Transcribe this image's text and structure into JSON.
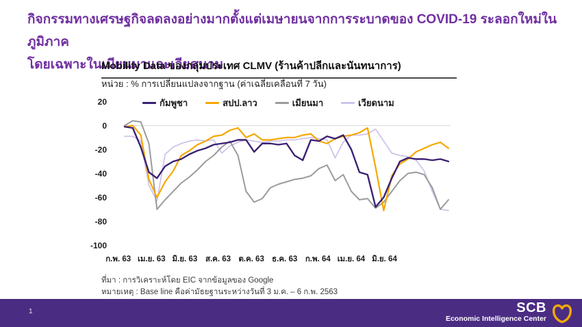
{
  "slide": {
    "headline_line1": "กิจกรรมทางเศรษฐกิจลดลงอย่างมากตั้งแต่เมษายนจากการระบาดของ COVID-19 ระลอกใหม่ในภูมิภาค",
    "headline_line2": "โดยเฉพาะในเมียนมาและเวียดนาม",
    "accent_color": "#7030A0"
  },
  "chart_header": {
    "title": "Mobility Data ของกลุ่มประเทศ CLMV (ร้านค้าปลีกและนันทนาการ)",
    "unit_label": "หน่วย : % การเปลี่ยนแปลงจากฐาน (ค่าเฉลี่ยเคลื่อนที่ 7 วัน)"
  },
  "notes": {
    "source": "ที่มา : การวิเคราะห์โดย EIC จากข้อมูลของ Google",
    "remark": "หมายเหตุ : Base line คือค่ามัธยฐานระหว่างวันที่ 3 ม.ค. – 6 ก.พ. 2563"
  },
  "footer": {
    "page_number": "1",
    "brand": "SCB",
    "brand_sub": "Economic Intelligence Center",
    "logo": "scb-leaf-icon",
    "logo_color": "#F2A900",
    "bar_color": "#4B2C83"
  },
  "chart_data": {
    "type": "line",
    "title": "Mobility Data ของกลุ่มประเทศ CLMV (ร้านค้าปลีกและนันทนาการ)",
    "ylabel": "% การเปลี่ยนแปลงจากฐาน (ค่าเฉลี่ยเคลื่อนที่ 7 วัน)",
    "xlabel": "",
    "ylim": [
      -100,
      20
    ],
    "y_ticks": [
      20,
      0,
      -20,
      -40,
      -60,
      -80,
      -100
    ],
    "x_ticks": [
      "ก.พ. 63",
      "เม.ย. 63",
      "มิ.ย. 63",
      "ส.ค. 63",
      "ต.ค. 63",
      "ธ.ค. 63",
      "ก.พ. 64",
      "เม.ย. 64",
      "มิ.ย. 64"
    ],
    "grid": "zero-baseline-only",
    "legend_position": "top",
    "series": [
      {
        "name": "เวียดนาม",
        "color": "#CFC3EA",
        "values": [
          -9,
          -9,
          -13,
          -50,
          -63,
          -24,
          -18,
          -15,
          -13,
          -12,
          -13,
          -12,
          -23,
          -17,
          -14,
          -12,
          -13,
          -14,
          -13,
          -13,
          -12,
          -12,
          -11,
          -10,
          -11,
          -12,
          -27,
          -14,
          -8,
          -8,
          -7,
          -3,
          -13,
          -23,
          -25,
          -26,
          -29,
          -38,
          -55,
          -70,
          -71
        ]
      },
      {
        "name": "เมียนมา",
        "color": "#9B9B9B",
        "values": [
          0,
          4,
          3,
          -15,
          -70,
          -62,
          -55,
          -48,
          -43,
          -37,
          -30,
          -25,
          -18,
          -13,
          -25,
          -55,
          -64,
          -61,
          -52,
          -49,
          -47,
          -45,
          -44,
          -42,
          -36,
          -33,
          -46,
          -41,
          -55,
          -62,
          -61,
          -69,
          -64,
          -55,
          -46,
          -40,
          -39,
          -41,
          -52,
          -70,
          -62
        ]
      },
      {
        "name": "สปป.ลาว",
        "color": "#F5A800",
        "values": [
          -1,
          0,
          -8,
          -45,
          -60,
          -47,
          -38,
          -25,
          -21,
          -16,
          -13,
          -9,
          -8,
          -4,
          -2,
          -10,
          -7,
          -12,
          -12,
          -11,
          -10,
          -10,
          -8,
          -7,
          -13,
          -15,
          -11,
          -9,
          -8,
          -6,
          -2,
          -35,
          -71,
          -42,
          -32,
          -28,
          -22,
          -19,
          -16,
          -14,
          -19
        ]
      },
      {
        "name": "กัมพูชา",
        "color": "#3B2173",
        "values": [
          -1,
          -2,
          -18,
          -39,
          -44,
          -34,
          -30,
          -28,
          -24,
          -21,
          -19,
          -16,
          -15,
          -14,
          -12,
          -12,
          -22,
          -15,
          -15,
          -16,
          -15,
          -25,
          -29,
          -12,
          -13,
          -9,
          -11,
          -8,
          -20,
          -39,
          -41,
          -68,
          -60,
          -44,
          -30,
          -27,
          -28,
          -28,
          -29,
          -28,
          -30
        ]
      }
    ],
    "legend_order": [
      "กัมพูชา",
      "สปป.ลาว",
      "เมียนมา",
      "เวียดนาม"
    ]
  }
}
